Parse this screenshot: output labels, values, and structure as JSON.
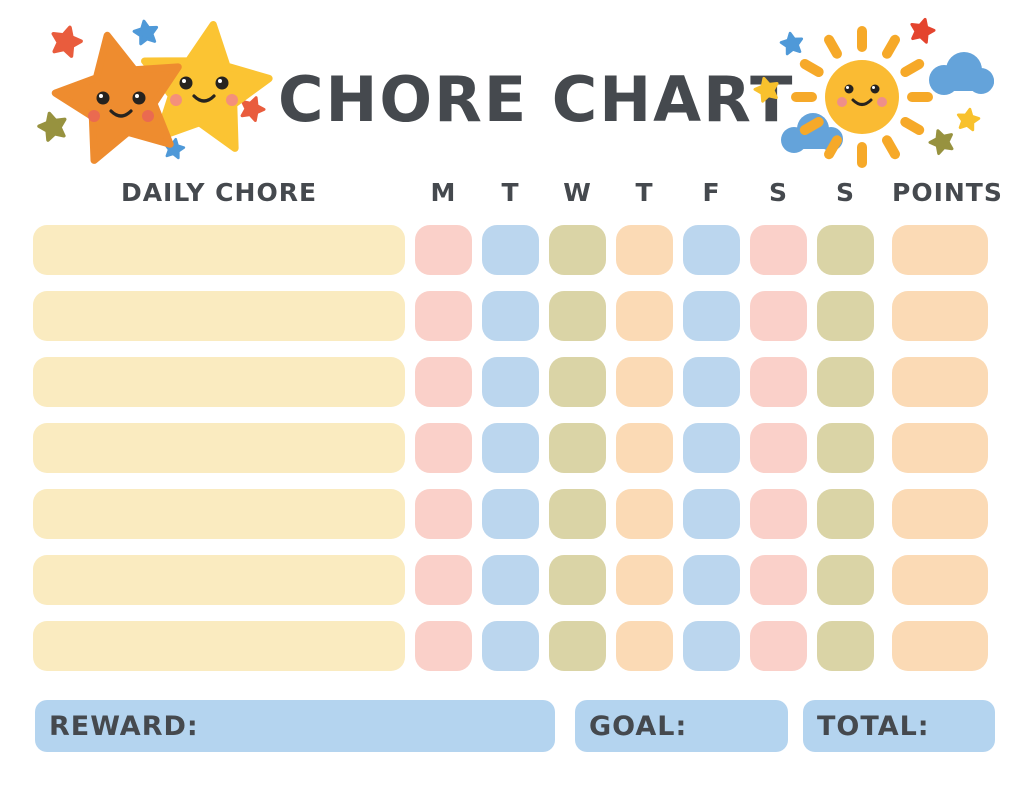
{
  "title": "CHORE CHART",
  "header": {
    "daily_chore": "DAILY CHORE",
    "days": [
      "M",
      "T",
      "W",
      "T",
      "F",
      "S",
      "S"
    ],
    "points": "POINTS"
  },
  "grid": {
    "row_count": 7,
    "chore_color": "cream",
    "day_pattern": [
      "pink",
      "blue",
      "olive",
      "peach",
      "blue",
      "pink",
      "olive"
    ],
    "points_color": "peach"
  },
  "footer": {
    "reward": "REWARD:",
    "goal": "GOAL:",
    "total": "TOTAL:"
  },
  "icons": {
    "left": "stars-illustration",
    "right": "sun-and-clouds-illustration"
  },
  "palette": {
    "text": "#45494E",
    "cream": "#FAEBC0",
    "pink": "#FAD0C9",
    "blue": "#BBD6EE",
    "olive": "#DAD4A6",
    "peach": "#FBDAB5",
    "footer_blue": "#B4D4EF",
    "star_orange": "#EE8C2F",
    "star_yellow": "#FBC433",
    "sun_body": "#FABB33",
    "sun_rays": "#F6A929",
    "cloud_blue": "#64A3DA",
    "accent_coral": "#E95C3D",
    "accent_blue": "#4F99D8",
    "accent_olive": "#97923F",
    "accent_yellow": "#F8C12D"
  }
}
